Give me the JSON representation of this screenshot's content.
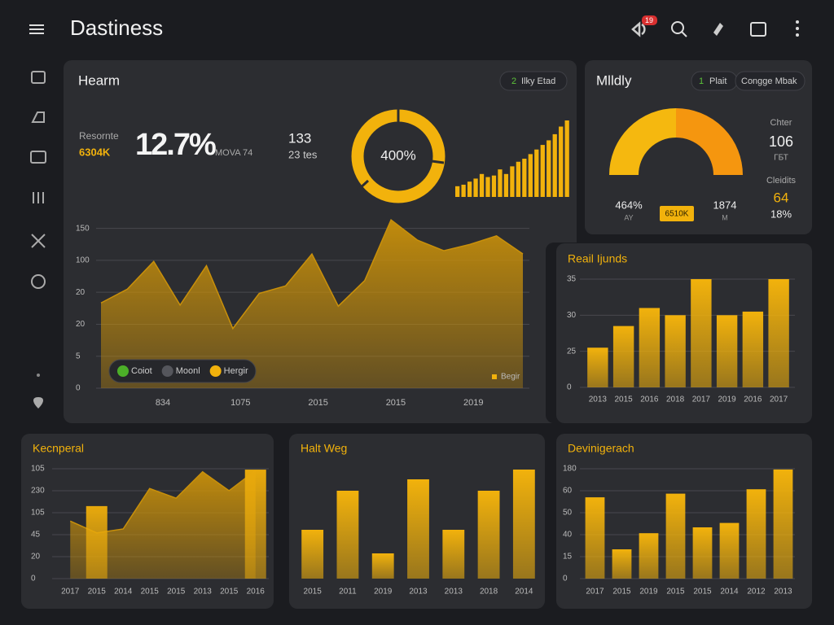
{
  "header": {
    "title": "Dastiness",
    "badge": "19"
  },
  "panels": [
    {
      "title": "Hearm",
      "button": {
        "badge": "2",
        "label": "Ilky Etad"
      },
      "kpis": {
        "label": "Resornte",
        "value": "6304K",
        "main": "12.7%",
        "note": "MOVA 74",
        "count": "133",
        "count_note": "23 tes"
      },
      "donut": {
        "label": "400%",
        "color": "#f2b20c"
      },
      "spark": {
        "type": "bar",
        "color": "#f2b20c",
        "ylim": [
          0,
          100
        ],
        "values": [
          14,
          16,
          20,
          24,
          30,
          26,
          28,
          36,
          30,
          40,
          46,
          50,
          56,
          62,
          68,
          74,
          82,
          92,
          100
        ]
      },
      "chart": {
        "type": "area",
        "color": "#c9900a",
        "ylim": [
          0,
          165
        ],
        "yticks": [
          0,
          {
            "value": 30,
            "label": "5"
          },
          {
            "value": 60,
            "label": "20"
          },
          {
            "value": 90,
            "label": "20"
          },
          {
            "value": 120,
            "label": "100"
          },
          {
            "value": 150,
            "label": "150"
          }
        ],
        "values": [
          80,
          93,
          119,
          78,
          115,
          56,
          89,
          96,
          126,
          77,
          101,
          158,
          139,
          129,
          135,
          143,
          126
        ],
        "xlabels": [
          "834",
          "1075",
          "2015",
          "2015",
          "2019"
        ],
        "legend": [
          {
            "name": "Coiot",
            "color": "#4caf28"
          },
          {
            "name": "Moonl",
            "color": "#55565c"
          },
          {
            "name": "Hergir",
            "color": "#f2b20c"
          }
        ],
        "note": {
          "label": "Begir",
          "color": "#f2b20c"
        }
      }
    },
    {
      "title": "Mlldly",
      "buttons": [
        {
          "badge": "1",
          "label": "Plait"
        },
        {
          "label": "Congge Mbak"
        }
      ],
      "gauge": {
        "colors": [
          "#f5b80f",
          "#f5960f"
        ]
      },
      "stats": {
        "left": "464%",
        "left_note": "AY",
        "badge": "6510K",
        "right": "1874",
        "right_note": "M"
      },
      "side": [
        {
          "label": "Chter",
          "value": "106",
          "note": "ГБТ"
        },
        {
          "label": "Cleidits",
          "value": "64",
          "note": "18%"
        }
      ]
    },
    {
      "title": "Reail Ijunds",
      "chart": {
        "type": "bar",
        "color": "#f2b20c",
        "ylim": [
          0,
          30
        ],
        "yticks": [
          0,
          {
            "value": 10,
            "label": "25"
          },
          {
            "value": 20,
            "label": "30"
          },
          {
            "value": 30,
            "label": "35"
          }
        ],
        "categories": [
          "2013",
          "2015",
          "2016",
          "2018",
          "2017",
          "2019",
          "2016",
          "2017"
        ],
        "values": [
          11,
          17,
          22,
          20,
          30,
          20,
          21,
          30
        ]
      }
    },
    {
      "title": "Kecnperal",
      "chart": {
        "type": "combo",
        "ylim": [
          0,
          250
        ],
        "yticks": [
          0,
          {
            "value": 50,
            "label": "20"
          },
          {
            "value": 100,
            "label": "45"
          },
          {
            "value": 150,
            "label": "105"
          },
          {
            "value": 200,
            "label": "230"
          },
          {
            "value": 250,
            "label": "105"
          }
        ],
        "categories": [
          "2017",
          "2015",
          "2014",
          "2015",
          "2015",
          "2013",
          "2015",
          "2016"
        ],
        "series": [
          {
            "type": "area",
            "color": "#c9900a",
            "values": [
              131,
              104,
              113,
              205,
              183,
              243,
              200,
              246
            ]
          },
          {
            "type": "bar",
            "color": "#e8a90c",
            "values": [
              null,
              165,
              null,
              null,
              null,
              null,
              null,
              248
            ]
          }
        ]
      }
    },
    {
      "title": "Halt Weg",
      "chart": {
        "type": "bar",
        "color": "#f2b20c",
        "ylim": [
          0,
          140
        ],
        "categories": [
          "2015",
          "2011",
          "2019",
          "2013",
          "2013",
          "2018",
          "2014"
        ],
        "values": [
          60,
          108,
          31,
          122,
          60,
          108,
          134
        ]
      }
    },
    {
      "title": "Devinigerach",
      "chart": {
        "type": "bar",
        "color": "#f2b20c",
        "ylim": [
          0,
          150
        ],
        "yticks": [
          0,
          {
            "value": 30,
            "label": "15"
          },
          {
            "value": 60,
            "label": "40"
          },
          {
            "value": 90,
            "label": "50"
          },
          {
            "value": 120,
            "label": "60"
          },
          {
            "value": 150,
            "label": "180"
          }
        ],
        "categories": [
          "2017",
          "2015",
          "2019",
          "2015",
          "2015",
          "2014",
          "2012",
          "2013"
        ],
        "values": [
          111,
          40,
          62,
          116,
          70,
          76,
          122,
          149
        ]
      }
    }
  ]
}
